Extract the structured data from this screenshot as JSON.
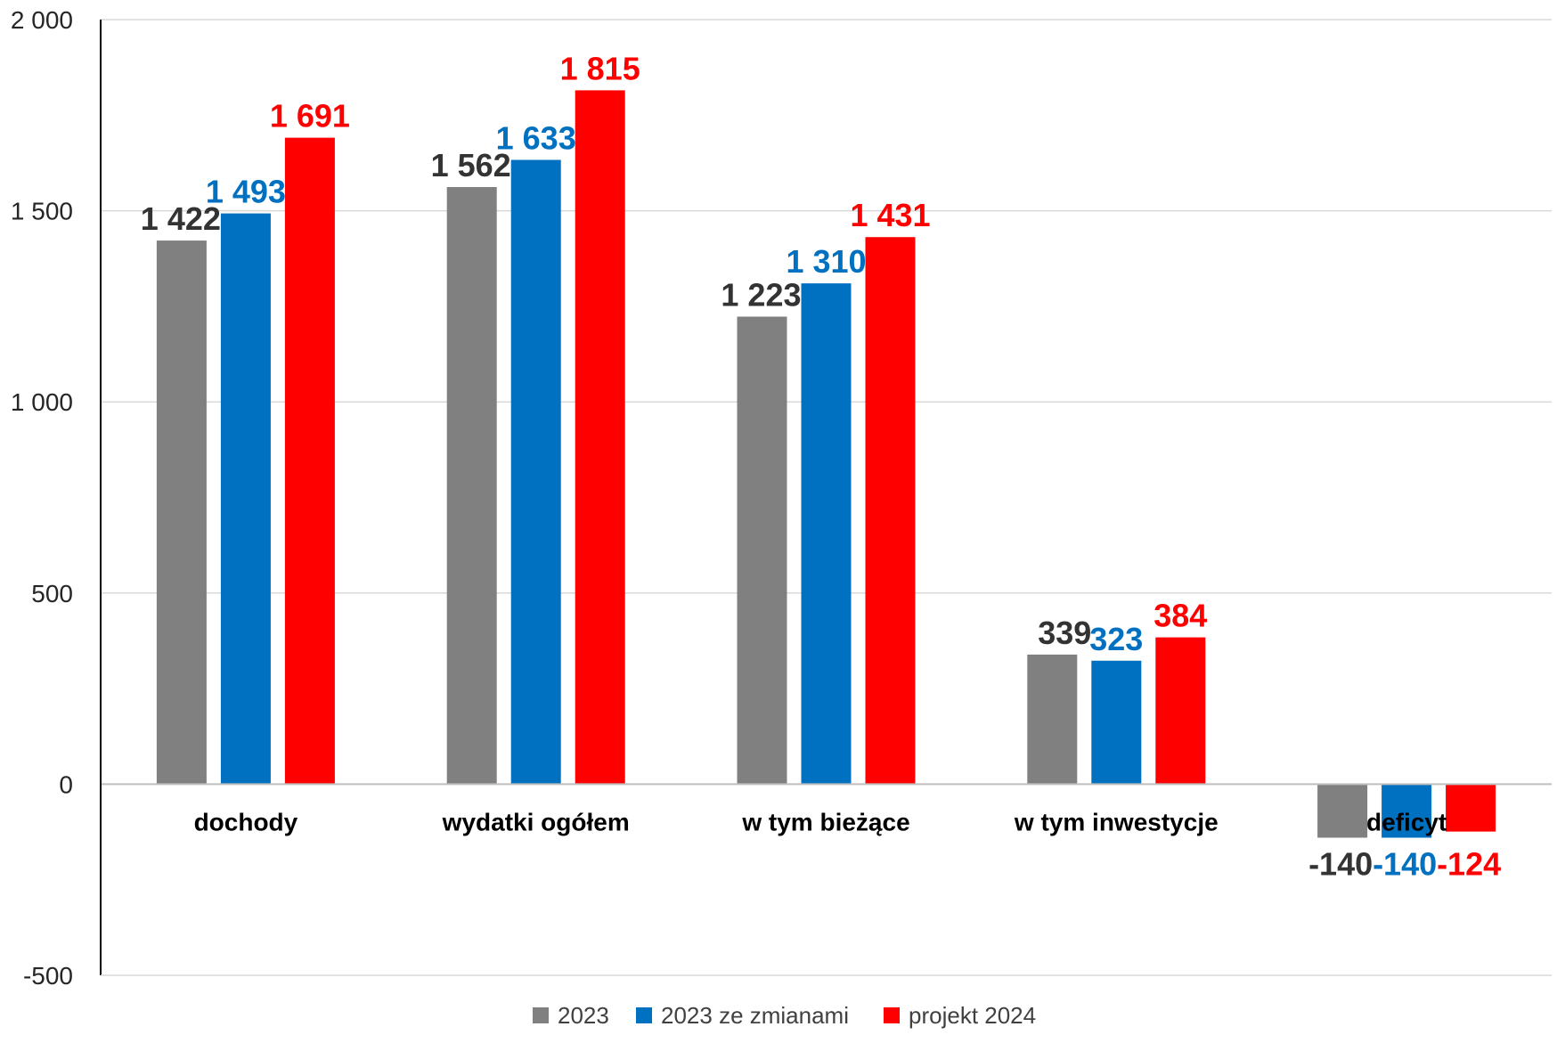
{
  "chart_data": {
    "type": "bar",
    "title": "",
    "xlabel": "",
    "ylabel": "",
    "ylim": [
      -500,
      2000
    ],
    "yticks": [
      2000,
      1500,
      1000,
      500,
      0,
      -500
    ],
    "ytick_labels": [
      "2 000",
      "1 500",
      "1 000",
      "500",
      "0",
      "-500"
    ],
    "grid": true,
    "legend_position": "bottom-center",
    "categories": [
      "dochody",
      "wydatki ogółem",
      "w tym bieżące",
      "w tym inwestycje",
      "deficyt"
    ],
    "series": [
      {
        "name": "2023",
        "color": "#808080",
        "label_color": "#333333",
        "values": [
          1422,
          1562,
          1223,
          339,
          -140
        ],
        "labels": [
          "1 422",
          "1 562",
          "1 223",
          "339",
          "-140"
        ]
      },
      {
        "name": "2023 ze zmianami",
        "color": "#0070C0",
        "label_color": "#0070C0",
        "values": [
          1493,
          1633,
          1310,
          323,
          -140
        ],
        "labels": [
          "1 493",
          "1 633",
          "1 310",
          "323",
          "-140"
        ]
      },
      {
        "name": "projekt 2024",
        "color": "#FF0000",
        "label_color": "#FF0000",
        "values": [
          1691,
          1815,
          1431,
          384,
          -124
        ],
        "labels": [
          "1 691",
          "1 815",
          "1 431",
          "384",
          "-124"
        ]
      }
    ]
  }
}
